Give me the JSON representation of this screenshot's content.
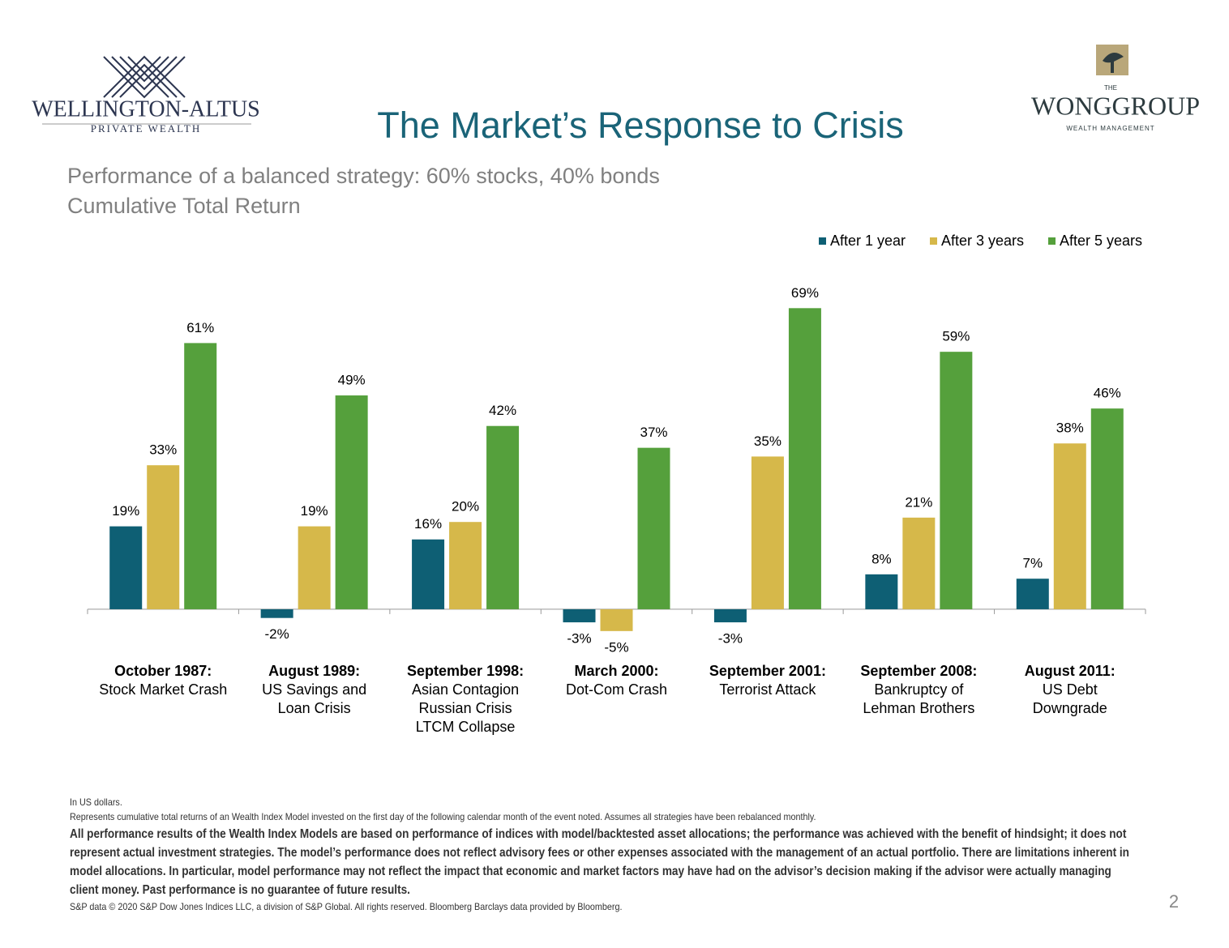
{
  "header": {
    "left_logo": [
      "WELLINGTON-ALTUS",
      "PRIVATE WEALTH"
    ],
    "right_logo": [
      "THE",
      "WONGGROUP",
      "WEALTH MANAGEMENT"
    ]
  },
  "chart_data": {
    "type": "bar",
    "title": "The Market’s Response to Crisis",
    "subtitle": [
      "Performance of a balanced strategy: 60% stocks, 40% bonds",
      "Cumulative Total Return"
    ],
    "categories": [
      [
        "October 1987:",
        "Stock Market Crash"
      ],
      [
        "August 1989:",
        "US Savings and",
        "Loan Crisis"
      ],
      [
        "September 1998:",
        "Asian Contagion",
        "Russian Crisis",
        "LTCM Collapse"
      ],
      [
        "March 2000:",
        "Dot-Com Crash"
      ],
      [
        "September 2001:",
        "Terrorist Attack"
      ],
      [
        "September 2008:",
        "Bankruptcy of",
        "Lehman Brothers"
      ],
      [
        "August 2011:",
        "US Debt",
        "Downgrade"
      ]
    ],
    "series": [
      {
        "name": "After 1 year",
        "color": "#0e5f74",
        "values": [
          19,
          -2,
          16,
          -3,
          -3,
          8,
          7
        ],
        "value_labels": [
          "19%",
          "-2%",
          "16%",
          "-3%",
          "-3%",
          "8%",
          "7%"
        ]
      },
      {
        "name": "After 3 years",
        "color": "#d6b84a",
        "values": [
          33,
          19,
          20,
          -5,
          35,
          21,
          38
        ],
        "value_labels": [
          "33%",
          "19%",
          "20%",
          "-5%",
          "35%",
          "21%",
          "38%"
        ]
      },
      {
        "name": "After 5 years",
        "color": "#55a03c",
        "values": [
          61,
          49,
          42,
          37,
          69,
          59,
          46
        ],
        "value_labels": [
          "61%",
          "49%",
          "42%",
          "37%",
          "69%",
          "59%",
          "46%"
        ]
      }
    ],
    "ylim": [
      -8,
      75
    ],
    "legend": "top-right"
  },
  "footer": {
    "notes": [
      "In US dollars.",
      "Represents cumulative total returns of an Wealth Index Model invested on the first day of the following calendar month of the event noted. Assumes all strategies have been rebalanced monthly."
    ],
    "disclaimer": "All performance results of the Wealth Index Models are based on performance of indices with model/backtested asset allocations; the performance was achieved with the benefit of hindsight; it does not represent actual investment strategies. The model’s performance does not reflect advisory fees or other expenses associated with the management of an actual portfolio. There are limitations inherent in model allocations. In particular, model performance may not reflect the impact that economic and market factors may have had on the advisor’s decision making if the advisor were actually managing client money. Past performance is no guarantee of future results.",
    "source": "S&P data © 2020 S&P Dow Jones Indices LLC, a division of S&P Global. All rights reserved. Bloomberg Barclays data provided by Bloomberg.",
    "page_number": "2"
  }
}
